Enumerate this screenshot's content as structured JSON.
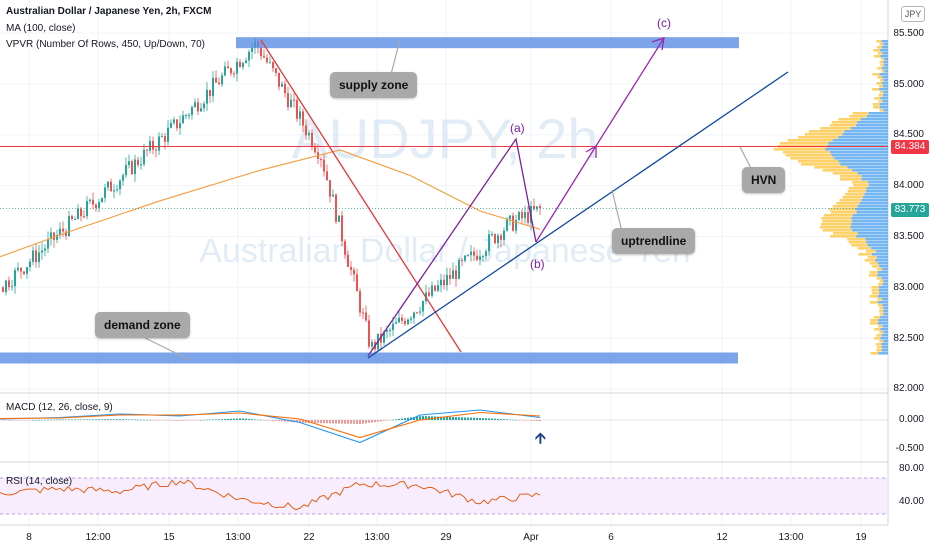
{
  "header": {
    "title": "Australian Dollar / Japanese Yen, 2h, FXCM",
    "ma": "MA (100, close)",
    "vpvr": "VPVR (Number Of Rows, 450, Up/Down, 70)"
  },
  "watermark": {
    "line1": "AUDJPY, 2h",
    "line2": "Australian Dollar / Japanese Yen"
  },
  "currency_badge": "JPY",
  "annotations": {
    "supply_zone": "supply zone",
    "demand_zone": "demand zone",
    "hvn": "HVN",
    "uptrendline": "uptrendline",
    "wave_a": "(a)",
    "wave_b": "(b)",
    "wave_c": "(c)"
  },
  "price_tags": {
    "red": "84.384",
    "current": "83.773"
  },
  "colors": {
    "red_line": "#f23645",
    "blue_tag": "#2196f3",
    "zone": "#5b8de3",
    "ma": "#f39c3d",
    "bull": "#26a69a",
    "bear": "#ef5350",
    "rsi": "#e65100"
  },
  "chart_data": [
    {
      "type": "line",
      "title": "Australian Dollar / Japanese Yen, 2h, FXCM",
      "x_ticks": [
        "8",
        "12:00",
        "15",
        "13:00",
        "22",
        "13:00",
        "29",
        "Apr",
        "6",
        "12",
        "13:00",
        "19"
      ],
      "y_ticks": [
        "85.500",
        "85.000",
        "84.500",
        "84.000",
        "83.500",
        "83.000",
        "82.500",
        "82.000"
      ],
      "ylim": [
        82.0,
        85.7
      ],
      "series": [
        {
          "name": "MA (100, close)",
          "x": [
            "8",
            "12:00",
            "15",
            "13:00",
            "22",
            "13:00",
            "29",
            "Apr"
          ],
          "values": [
            83.3,
            83.55,
            83.85,
            84.15,
            84.35,
            84.1,
            83.75,
            83.57
          ]
        }
      ],
      "price_path": {
        "x": [
          "8",
          "12:00",
          "15",
          "13:00",
          "22",
          "13:00",
          "29",
          "Apr"
        ],
        "values": [
          83.0,
          83.9,
          84.55,
          85.4,
          84.3,
          82.4,
          83.6,
          83.77
        ]
      },
      "levels": {
        "supply_zone": 85.4,
        "demand_zone": 82.3,
        "hvn": 84.384,
        "last": 83.773
      }
    },
    {
      "type": "line",
      "title": "MACD (12, 26, close, 9)",
      "y_ticks": [
        "0.000",
        "-0.500"
      ],
      "ylim": [
        -0.6,
        0.4
      ],
      "series": [
        {
          "name": "MACD",
          "values": [
            0.02,
            0.05,
            0.12,
            0.08,
            0.18,
            -0.05,
            -0.45,
            0.1,
            0.2,
            0.05
          ]
        },
        {
          "name": "Signal",
          "values": [
            0.03,
            0.04,
            0.1,
            0.1,
            0.14,
            0.02,
            -0.35,
            0.0,
            0.15,
            0.08
          ]
        }
      ]
    },
    {
      "type": "line",
      "title": "RSI (14, close)",
      "y_ticks": [
        "80.00",
        "40.00"
      ],
      "ylim": [
        25,
        90
      ],
      "series": [
        {
          "name": "RSI",
          "values": [
            55,
            62,
            58,
            75,
            45,
            30,
            70,
            68,
            40,
            52
          ]
        }
      ]
    }
  ]
}
